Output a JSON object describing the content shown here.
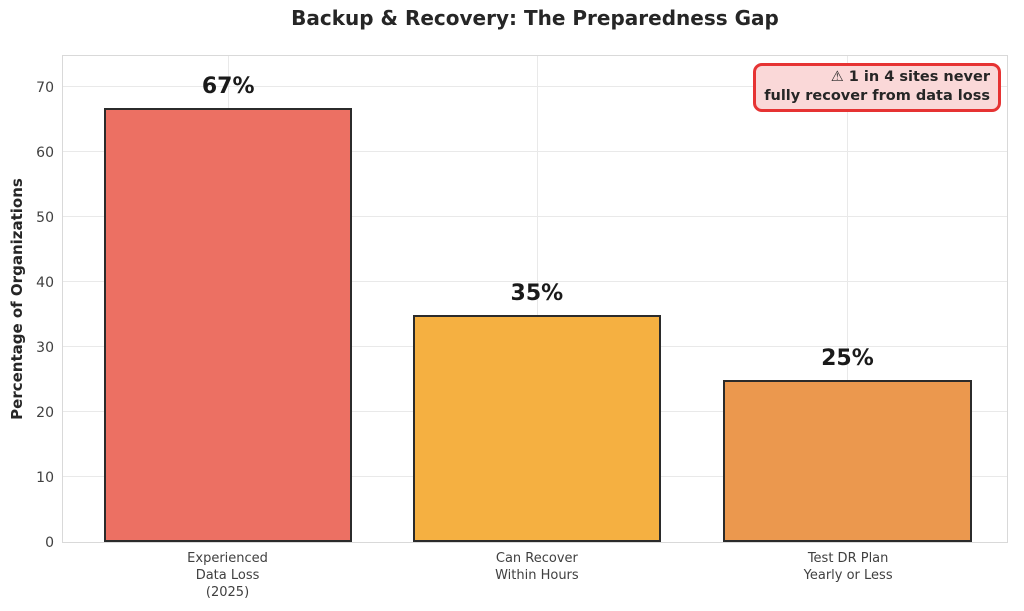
{
  "chart_data": {
    "type": "bar",
    "title": "Backup & Recovery: The Preparedness Gap",
    "ylabel": "Percentage of Organizations",
    "xlabel": "",
    "categories": [
      "Experienced\nData Loss\n(2025)",
      "Can Recover\nWithin Hours",
      "Test DR Plan\nYearly or Less"
    ],
    "values": [
      67,
      35,
      25
    ],
    "value_labels": [
      "67%",
      "35%",
      "25%"
    ],
    "bar_colors": [
      "#EC7063",
      "#F5B041",
      "#EB984E"
    ],
    "bar_edge_color": "#2b2b2b",
    "ylim": [
      0,
      75
    ],
    "yticks": [
      0,
      10,
      20,
      30,
      40,
      50,
      60,
      70
    ],
    "grid": true,
    "legend": null,
    "annotation": {
      "icon": "⚠",
      "line1": "1 in 4 sites never",
      "line2": "fully recover from data loss",
      "border_color": "#e63333",
      "background_color": "#fad8d8",
      "text_color": "#262626"
    }
  }
}
